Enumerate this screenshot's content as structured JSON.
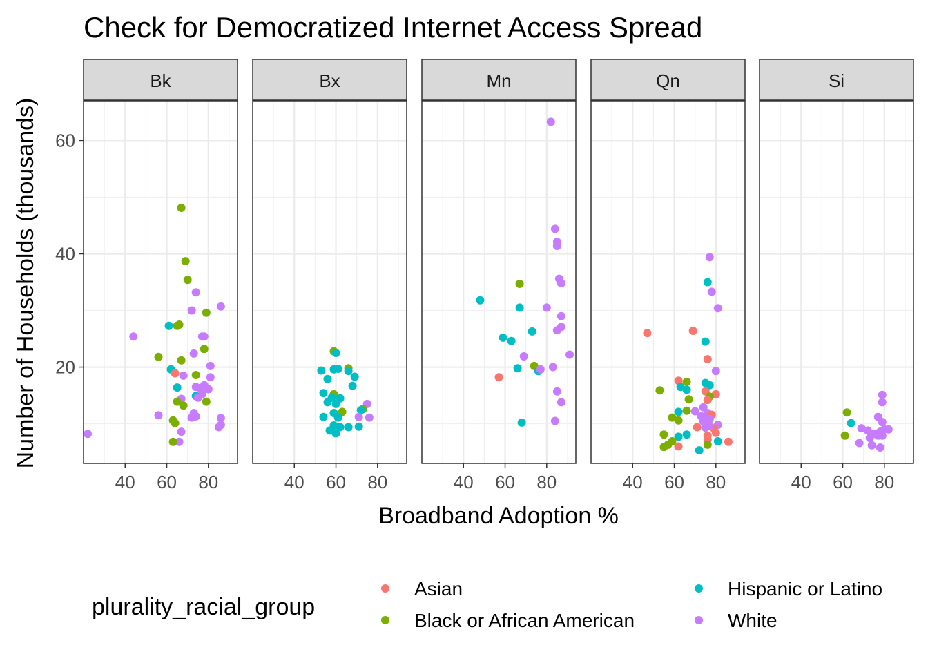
{
  "chart_data": {
    "type": "scatter",
    "title": "Check for Democratized Internet Access Spread",
    "xlabel": "Broadband Adoption %",
    "ylabel": "Number of Households (thousands)",
    "xlim": [
      20,
      94
    ],
    "ylim": [
      3,
      67
    ],
    "x_ticks": [
      40,
      60,
      80
    ],
    "y_ticks": [
      20,
      40,
      60
    ],
    "grid": true,
    "legend": {
      "title": "plurality_racial_group",
      "placement": "bottom",
      "entries": [
        "Asian",
        "Black or African American",
        "Hispanic or Latino",
        "White"
      ]
    },
    "colors": {
      "Asian": "#F8766D",
      "Black or African American": "#7CAE00",
      "Hispanic or Latino": "#00BFC4",
      "White": "#C77CFF"
    },
    "facets": [
      {
        "name": "Bk",
        "points": [
          {
            "g": "Black or African American",
            "x": 67,
            "y": 48.1
          },
          {
            "g": "Black or African American",
            "x": 69,
            "y": 38.7
          },
          {
            "g": "Black or African American",
            "x": 70,
            "y": 35.4
          },
          {
            "g": "White",
            "x": 74,
            "y": 33.2
          },
          {
            "g": "White",
            "x": 86,
            "y": 30.7
          },
          {
            "g": "White",
            "x": 72,
            "y": 30.0
          },
          {
            "g": "Black or African American",
            "x": 79,
            "y": 29.6
          },
          {
            "g": "Black or African American",
            "x": 65,
            "y": 27.3
          },
          {
            "g": "Black or African American",
            "x": 66,
            "y": 27.5
          },
          {
            "g": "Hispanic or Latino",
            "x": 61,
            "y": 27.3
          },
          {
            "g": "White",
            "x": 44,
            "y": 25.4
          },
          {
            "g": "White",
            "x": 77,
            "y": 25.4
          },
          {
            "g": "White",
            "x": 78,
            "y": 25.4
          },
          {
            "g": "Black or African American",
            "x": 78,
            "y": 23.2
          },
          {
            "g": "White",
            "x": 73,
            "y": 22.4
          },
          {
            "g": "Black or African American",
            "x": 56,
            "y": 21.8
          },
          {
            "g": "Black or African American",
            "x": 67,
            "y": 21.2
          },
          {
            "g": "White",
            "x": 81,
            "y": 20.2
          },
          {
            "g": "Hispanic or Latino",
            "x": 62,
            "y": 19.6
          },
          {
            "g": "Asian",
            "x": 64,
            "y": 18.9
          },
          {
            "g": "White",
            "x": 68,
            "y": 18.5
          },
          {
            "g": "Black or African American",
            "x": 74,
            "y": 18.6
          },
          {
            "g": "White",
            "x": 81,
            "y": 18.2
          },
          {
            "g": "Hispanic or Latino",
            "x": 65,
            "y": 16.4
          },
          {
            "g": "White",
            "x": 74,
            "y": 16.5
          },
          {
            "g": "White",
            "x": 76,
            "y": 16.3
          },
          {
            "g": "White",
            "x": 78,
            "y": 16.8
          },
          {
            "g": "White",
            "x": 80,
            "y": 16.1
          },
          {
            "g": "White",
            "x": 77,
            "y": 15.2
          },
          {
            "g": "Hispanic or Latino",
            "x": 74,
            "y": 14.9
          },
          {
            "g": "White",
            "x": 75,
            "y": 14.6
          },
          {
            "g": "White",
            "x": 67,
            "y": 14.4
          },
          {
            "g": "Black or African American",
            "x": 65,
            "y": 13.9
          },
          {
            "g": "Black or African American",
            "x": 79,
            "y": 13.9
          },
          {
            "g": "Black or African American",
            "x": 68,
            "y": 13.2
          },
          {
            "g": "White",
            "x": 73,
            "y": 11.9
          },
          {
            "g": "White",
            "x": 56,
            "y": 11.5
          },
          {
            "g": "White",
            "x": 74,
            "y": 11.3
          },
          {
            "g": "White",
            "x": 72,
            "y": 11.1
          },
          {
            "g": "White",
            "x": 86,
            "y": 11.0
          },
          {
            "g": "Black or African American",
            "x": 63,
            "y": 10.6
          },
          {
            "g": "Black or African American",
            "x": 64,
            "y": 10.1
          },
          {
            "g": "White",
            "x": 86,
            "y": 9.8
          },
          {
            "g": "White",
            "x": 85,
            "y": 9.4
          },
          {
            "g": "White",
            "x": 67,
            "y": 8.6
          },
          {
            "g": "White",
            "x": 22,
            "y": 8.2
          },
          {
            "g": "White",
            "x": 66,
            "y": 6.8
          },
          {
            "g": "Black or African American",
            "x": 63,
            "y": 6.8
          }
        ]
      },
      {
        "name": "Bx",
        "points": [
          {
            "g": "Black or African American",
            "x": 59,
            "y": 22.8
          },
          {
            "g": "Hispanic or Latino",
            "x": 60,
            "y": 22.5
          },
          {
            "g": "Black or African American",
            "x": 66,
            "y": 19.8
          },
          {
            "g": "Hispanic or Latino",
            "x": 66,
            "y": 19.3
          },
          {
            "g": "Hispanic or Latino",
            "x": 59,
            "y": 19.6
          },
          {
            "g": "Hispanic or Latino",
            "x": 61,
            "y": 19.7
          },
          {
            "g": "Hispanic or Latino",
            "x": 53,
            "y": 19.4
          },
          {
            "g": "Hispanic or Latino",
            "x": 69,
            "y": 18.3
          },
          {
            "g": "Hispanic or Latino",
            "x": 56,
            "y": 17.9
          },
          {
            "g": "Hispanic or Latino",
            "x": 68,
            "y": 16.7
          },
          {
            "g": "Hispanic or Latino",
            "x": 54,
            "y": 15.4
          },
          {
            "g": "Black or African American",
            "x": 59,
            "y": 15.2
          },
          {
            "g": "Hispanic or Latino",
            "x": 58,
            "y": 14.6
          },
          {
            "g": "Hispanic or Latino",
            "x": 62,
            "y": 14.5
          },
          {
            "g": "Hispanic or Latino",
            "x": 56,
            "y": 13.8
          },
          {
            "g": "Hispanic or Latino",
            "x": 60,
            "y": 13.5
          },
          {
            "g": "White",
            "x": 75,
            "y": 13.5
          },
          {
            "g": "Black or African American",
            "x": 73,
            "y": 12.6
          },
          {
            "g": "Hispanic or Latino",
            "x": 72,
            "y": 12.4
          },
          {
            "g": "Black or African American",
            "x": 63,
            "y": 12.1
          },
          {
            "g": "Hispanic or Latino",
            "x": 59,
            "y": 11.9
          },
          {
            "g": "Hispanic or Latino",
            "x": 54,
            "y": 11.2
          },
          {
            "g": "Hispanic or Latino",
            "x": 61,
            "y": 11.1
          },
          {
            "g": "White",
            "x": 71,
            "y": 11.2
          },
          {
            "g": "White",
            "x": 76,
            "y": 11.1
          },
          {
            "g": "Hispanic or Latino",
            "x": 59,
            "y": 9.7
          },
          {
            "g": "Hispanic or Latino",
            "x": 62,
            "y": 9.4
          },
          {
            "g": "Hispanic or Latino",
            "x": 66,
            "y": 9.4
          },
          {
            "g": "Hispanic or Latino",
            "x": 71,
            "y": 9.5
          },
          {
            "g": "Hispanic or Latino",
            "x": 57,
            "y": 8.8
          },
          {
            "g": "Hispanic or Latino",
            "x": 60,
            "y": 8.3
          }
        ]
      },
      {
        "name": "Mn",
        "points": [
          {
            "g": "White",
            "x": 82,
            "y": 63.3
          },
          {
            "g": "White",
            "x": 84,
            "y": 44.4
          },
          {
            "g": "White",
            "x": 85,
            "y": 42.1
          },
          {
            "g": "White",
            "x": 85,
            "y": 41.4
          },
          {
            "g": "White",
            "x": 86,
            "y": 35.6
          },
          {
            "g": "White",
            "x": 87,
            "y": 34.8
          },
          {
            "g": "Black or African American",
            "x": 67,
            "y": 34.7
          },
          {
            "g": "Hispanic or Latino",
            "x": 48,
            "y": 31.8
          },
          {
            "g": "Hispanic or Latino",
            "x": 67,
            "y": 30.5
          },
          {
            "g": "White",
            "x": 80,
            "y": 30.5
          },
          {
            "g": "White",
            "x": 87,
            "y": 29.0
          },
          {
            "g": "White",
            "x": 87,
            "y": 27.1
          },
          {
            "g": "White",
            "x": 85,
            "y": 26.5
          },
          {
            "g": "Hispanic or Latino",
            "x": 73,
            "y": 26.3
          },
          {
            "g": "Hispanic or Latino",
            "x": 59,
            "y": 25.2
          },
          {
            "g": "Hispanic or Latino",
            "x": 63,
            "y": 24.6
          },
          {
            "g": "White",
            "x": 91,
            "y": 22.2
          },
          {
            "g": "White",
            "x": 69,
            "y": 21.9
          },
          {
            "g": "Black or African American",
            "x": 74,
            "y": 20.2
          },
          {
            "g": "White",
            "x": 83,
            "y": 20.0
          },
          {
            "g": "Hispanic or Latino",
            "x": 66,
            "y": 19.8
          },
          {
            "g": "Hispanic or Latino",
            "x": 76,
            "y": 19.3
          },
          {
            "g": "White",
            "x": 77,
            "y": 19.6
          },
          {
            "g": "Asian",
            "x": 57,
            "y": 18.2
          },
          {
            "g": "White",
            "x": 85,
            "y": 15.7
          },
          {
            "g": "White",
            "x": 87,
            "y": 13.8
          },
          {
            "g": "White",
            "x": 84,
            "y": 10.5
          },
          {
            "g": "Hispanic or Latino",
            "x": 68,
            "y": 10.2
          }
        ]
      },
      {
        "name": "Qn",
        "points": [
          {
            "g": "White",
            "x": 77,
            "y": 39.4
          },
          {
            "g": "Hispanic or Latino",
            "x": 76,
            "y": 35.0
          },
          {
            "g": "White",
            "x": 78,
            "y": 33.3
          },
          {
            "g": "White",
            "x": 81,
            "y": 30.4
          },
          {
            "g": "Asian",
            "x": 69,
            "y": 26.4
          },
          {
            "g": "Asian",
            "x": 47,
            "y": 26.0
          },
          {
            "g": "Hispanic or Latino",
            "x": 75,
            "y": 24.5
          },
          {
            "g": "Asian",
            "x": 76,
            "y": 21.4
          },
          {
            "g": "White",
            "x": 80,
            "y": 19.3
          },
          {
            "g": "Asian",
            "x": 62,
            "y": 17.6
          },
          {
            "g": "Black or African American",
            "x": 66,
            "y": 17.4
          },
          {
            "g": "Hispanic or Latino",
            "x": 75,
            "y": 17.2
          },
          {
            "g": "Hispanic or Latino",
            "x": 77,
            "y": 16.8
          },
          {
            "g": "Hispanic or Latino",
            "x": 63,
            "y": 16.5
          },
          {
            "g": "Hispanic or Latino",
            "x": 66,
            "y": 16.0
          },
          {
            "g": "Black or African American",
            "x": 53,
            "y": 15.9
          },
          {
            "g": "Asian",
            "x": 75,
            "y": 15.7
          },
          {
            "g": "Asian",
            "x": 80,
            "y": 15.2
          },
          {
            "g": "Black or African American",
            "x": 77,
            "y": 14.8
          },
          {
            "g": "Asian",
            "x": 76,
            "y": 14.2
          },
          {
            "g": "Black or African American",
            "x": 67,
            "y": 14.3
          },
          {
            "g": "White",
            "x": 74,
            "y": 12.9
          },
          {
            "g": "Hispanic or Latino",
            "x": 62,
            "y": 12.1
          },
          {
            "g": "White",
            "x": 70,
            "y": 12.2
          },
          {
            "g": "Black or African American",
            "x": 66,
            "y": 12.3
          },
          {
            "g": "White",
            "x": 76,
            "y": 11.9
          },
          {
            "g": "Asian",
            "x": 78,
            "y": 11.6
          },
          {
            "g": "White",
            "x": 73,
            "y": 11.3
          },
          {
            "g": "Black or African American",
            "x": 59,
            "y": 11.1
          },
          {
            "g": "White",
            "x": 75,
            "y": 11.0
          },
          {
            "g": "White",
            "x": 77,
            "y": 10.8
          },
          {
            "g": "Black or African American",
            "x": 62,
            "y": 10.6
          },
          {
            "g": "White",
            "x": 74,
            "y": 10.4
          },
          {
            "g": "White",
            "x": 76,
            "y": 10.1
          },
          {
            "g": "White",
            "x": 81,
            "y": 9.8
          },
          {
            "g": "Asian",
            "x": 71,
            "y": 9.4
          },
          {
            "g": "White",
            "x": 75,
            "y": 9.3
          },
          {
            "g": "Asian",
            "x": 79,
            "y": 9.2
          },
          {
            "g": "White",
            "x": 77,
            "y": 9.6
          },
          {
            "g": "Asian",
            "x": 80,
            "y": 8.4
          },
          {
            "g": "Black or African American",
            "x": 55,
            "y": 8.1
          },
          {
            "g": "Hispanic or Latino",
            "x": 66,
            "y": 8.1
          },
          {
            "g": "Hispanic or Latino",
            "x": 62,
            "y": 7.7
          },
          {
            "g": "Asian",
            "x": 76,
            "y": 7.9
          },
          {
            "g": "Asian",
            "x": 76,
            "y": 7.2
          },
          {
            "g": "Hispanic or Latino",
            "x": 81,
            "y": 6.9
          },
          {
            "g": "Asian",
            "x": 86,
            "y": 6.8
          },
          {
            "g": "Black or African American",
            "x": 59,
            "y": 6.9
          },
          {
            "g": "Black or African American",
            "x": 57,
            "y": 6.3
          },
          {
            "g": "Black or African American",
            "x": 76,
            "y": 6.3
          },
          {
            "g": "Asian",
            "x": 62,
            "y": 6.0
          },
          {
            "g": "Black or African American",
            "x": 55,
            "y": 5.9
          },
          {
            "g": "Hispanic or Latino",
            "x": 72,
            "y": 5.3
          }
        ]
      },
      {
        "name": "Si",
        "points": [
          {
            "g": "White",
            "x": 79,
            "y": 15.1
          },
          {
            "g": "White",
            "x": 79,
            "y": 13.8
          },
          {
            "g": "Black or African American",
            "x": 62,
            "y": 12.0
          },
          {
            "g": "White",
            "x": 77,
            "y": 11.2
          },
          {
            "g": "White",
            "x": 79,
            "y": 10.3
          },
          {
            "g": "Hispanic or Latino",
            "x": 64,
            "y": 10.1
          },
          {
            "g": "White",
            "x": 69,
            "y": 9.2
          },
          {
            "g": "White",
            "x": 72,
            "y": 8.8
          },
          {
            "g": "White",
            "x": 80,
            "y": 9.0
          },
          {
            "g": "White",
            "x": 82,
            "y": 9.0
          },
          {
            "g": "White",
            "x": 78,
            "y": 8.6
          },
          {
            "g": "White",
            "x": 75,
            "y": 8.2
          },
          {
            "g": "White",
            "x": 77,
            "y": 7.9
          },
          {
            "g": "White",
            "x": 79,
            "y": 7.9
          },
          {
            "g": "Black or African American",
            "x": 61,
            "y": 7.9
          },
          {
            "g": "White",
            "x": 73,
            "y": 7.5
          },
          {
            "g": "White",
            "x": 68,
            "y": 6.6
          },
          {
            "g": "White",
            "x": 74,
            "y": 6.2
          },
          {
            "g": "White",
            "x": 78,
            "y": 5.8
          }
        ]
      }
    ]
  }
}
